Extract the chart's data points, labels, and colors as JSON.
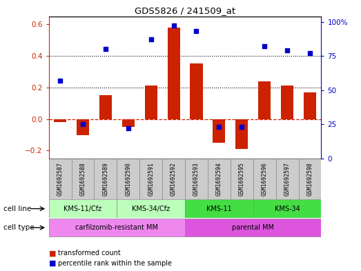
{
  "title": "GDS5826 / 241509_at",
  "samples": [
    "GSM1692587",
    "GSM1692588",
    "GSM1692589",
    "GSM1692590",
    "GSM1692591",
    "GSM1692592",
    "GSM1692593",
    "GSM1692594",
    "GSM1692595",
    "GSM1692596",
    "GSM1692597",
    "GSM1692598"
  ],
  "bar_values": [
    -0.02,
    -0.1,
    0.15,
    -0.05,
    0.21,
    0.58,
    0.35,
    -0.15,
    -0.19,
    0.24,
    0.21,
    0.17
  ],
  "dot_values_pct": [
    57,
    25,
    80,
    22,
    87,
    97,
    93,
    23,
    23,
    82,
    79,
    77
  ],
  "bar_color": "#cc2200",
  "dot_color": "#0000cc",
  "ylim_left": [
    -0.25,
    0.65
  ],
  "ylim_right": [
    0,
    104
  ],
  "yticks_left": [
    -0.2,
    0.0,
    0.2,
    0.4,
    0.6
  ],
  "yticks_right": [
    0,
    25,
    50,
    75,
    100
  ],
  "yticklabels_right": [
    "0",
    "25",
    "50",
    "75",
    "100%"
  ],
  "dotted_lines": [
    0.2,
    0.4
  ],
  "cell_line_groups": [
    {
      "label": "KMS-11/Cfz",
      "start": 0,
      "end": 2,
      "color": "#bbffbb"
    },
    {
      "label": "KMS-34/Cfz",
      "start": 3,
      "end": 5,
      "color": "#bbffbb"
    },
    {
      "label": "KMS-11",
      "start": 6,
      "end": 8,
      "color": "#44dd44"
    },
    {
      "label": "KMS-34",
      "start": 9,
      "end": 11,
      "color": "#44dd44"
    }
  ],
  "cell_type_groups": [
    {
      "label": "carfilzomib-resistant MM",
      "start": 0,
      "end": 5,
      "color": "#ee88ee"
    },
    {
      "label": "parental MM",
      "start": 6,
      "end": 11,
      "color": "#dd55dd"
    }
  ],
  "legend_bar_label": "transformed count",
  "legend_dot_label": "percentile rank within the sample",
  "cell_line_label": "cell line",
  "cell_type_label": "cell type",
  "bar_width": 0.55,
  "right_axis_color": "#0000cc",
  "sample_bg": "#cccccc"
}
